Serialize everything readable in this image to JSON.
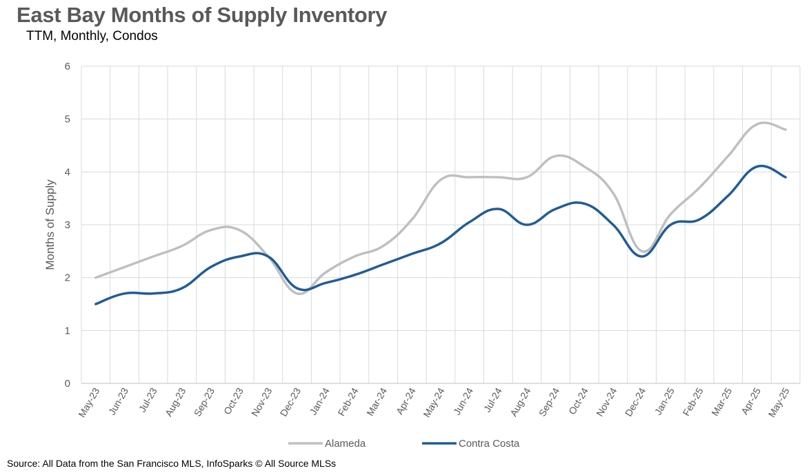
{
  "chart_data": {
    "type": "line",
    "title": "East Bay Months of Supply Inventory",
    "subtitle": "TTM, Monthly, Condos",
    "ylabel": "Months of Supply",
    "xlabel": "",
    "ylim": [
      0,
      6
    ],
    "yticks": [
      0,
      1,
      2,
      3,
      4,
      5,
      6
    ],
    "grid": true,
    "legend_position": "bottom",
    "categories": [
      "May-23",
      "Jun-23",
      "Jul-23",
      "Aug-23",
      "Sep-23",
      "Oct-23",
      "Nov-23",
      "Dec-23",
      "Jan-24",
      "Feb-24",
      "Mar-24",
      "Apr-24",
      "May-24",
      "Jun-24",
      "Jul-24",
      "Aug-24",
      "Sep-24",
      "Oct-24",
      "Nov-24",
      "Dec-24",
      "Jan-25",
      "Feb-25",
      "Mar-25",
      "Apr-25",
      "May-25"
    ],
    "series": [
      {
        "name": "Alameda",
        "color": "#BFBFBF",
        "values": [
          2.0,
          2.2,
          2.4,
          2.6,
          2.9,
          2.9,
          2.4,
          1.7,
          2.1,
          2.4,
          2.6,
          3.1,
          3.85,
          3.9,
          3.9,
          3.9,
          4.3,
          4.1,
          3.6,
          2.5,
          3.2,
          3.7,
          4.3,
          4.9,
          4.8
        ]
      },
      {
        "name": "Contra Costa",
        "color": "#1F5C99",
        "values": [
          1.5,
          1.7,
          1.7,
          1.8,
          2.2,
          2.4,
          2.4,
          1.8,
          1.9,
          2.05,
          2.25,
          2.45,
          2.65,
          3.05,
          3.3,
          3.0,
          3.3,
          3.4,
          3.0,
          2.4,
          3.0,
          3.1,
          3.55,
          4.1,
          3.9
        ]
      }
    ]
  },
  "footer": {
    "source": "Source: All Data from the San Francisco MLS, InfoSparks © All Source MLSs"
  }
}
